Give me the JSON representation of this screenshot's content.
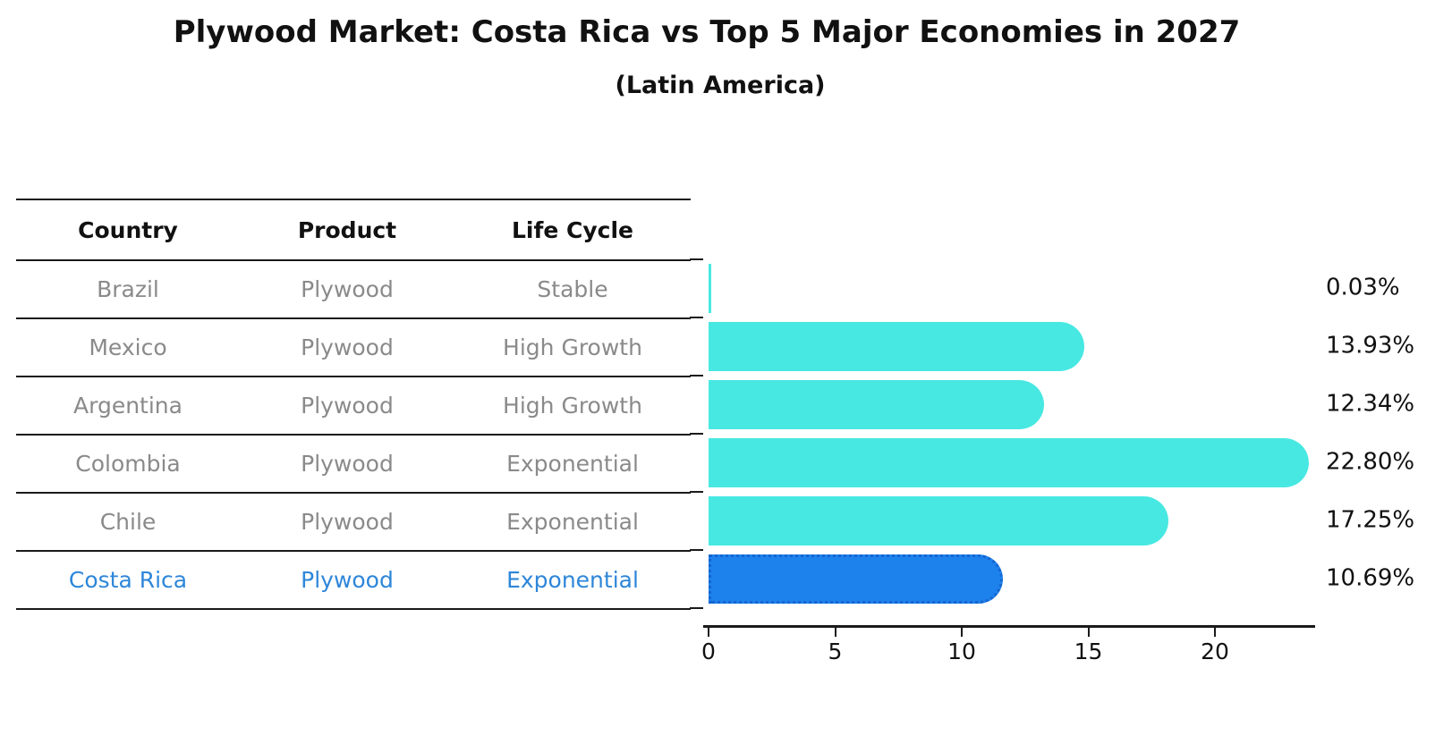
{
  "title": "Plywood Market: Costa Rica vs Top 5 Major Economies in 2027",
  "subtitle": "(Latin America)",
  "table": {
    "headers": [
      "Country",
      "Product",
      "Life Cycle"
    ],
    "rows": [
      {
        "country": "Brazil",
        "product": "Plywood",
        "life_cycle": "Stable",
        "highlighted": false
      },
      {
        "country": "Mexico",
        "product": "Plywood",
        "life_cycle": "High Growth",
        "highlighted": false
      },
      {
        "country": "Argentina",
        "product": "Plywood",
        "life_cycle": "High Growth",
        "highlighted": false
      },
      {
        "country": "Colombia",
        "product": "Plywood",
        "life_cycle": "Exponential",
        "highlighted": false
      },
      {
        "country": "Chile",
        "product": "Plywood",
        "life_cycle": "Exponential",
        "highlighted": false
      },
      {
        "country": "Costa Rica",
        "product": "Plywood",
        "life_cycle": "Exponential",
        "highlighted": true
      }
    ]
  },
  "chart_data": {
    "type": "bar",
    "orientation": "horizontal",
    "categories": [
      "Brazil",
      "Mexico",
      "Argentina",
      "Colombia",
      "Chile",
      "Costa Rica"
    ],
    "values": [
      0.03,
      13.93,
      12.34,
      22.8,
      17.25,
      10.69
    ],
    "value_labels": [
      "0.03%",
      "13.93%",
      "12.34%",
      "22.80%",
      "17.25%",
      "10.69%"
    ],
    "x_ticks": [
      0,
      5,
      10,
      15,
      20
    ],
    "xlim": [
      0,
      23.94
    ],
    "grid": false,
    "legend": false,
    "xlabel": "",
    "ylabel": "",
    "bar_color": "#48E8E2",
    "highlight_bar_color": "#1E82EC",
    "highlight_edge_color": "#1565D0",
    "highlight_index": 5
  },
  "colors": {
    "title_text": "#111111",
    "row_text": "#8a8a8a",
    "highlight_text": "#2E86D9",
    "axis": "#1a1a1a"
  }
}
